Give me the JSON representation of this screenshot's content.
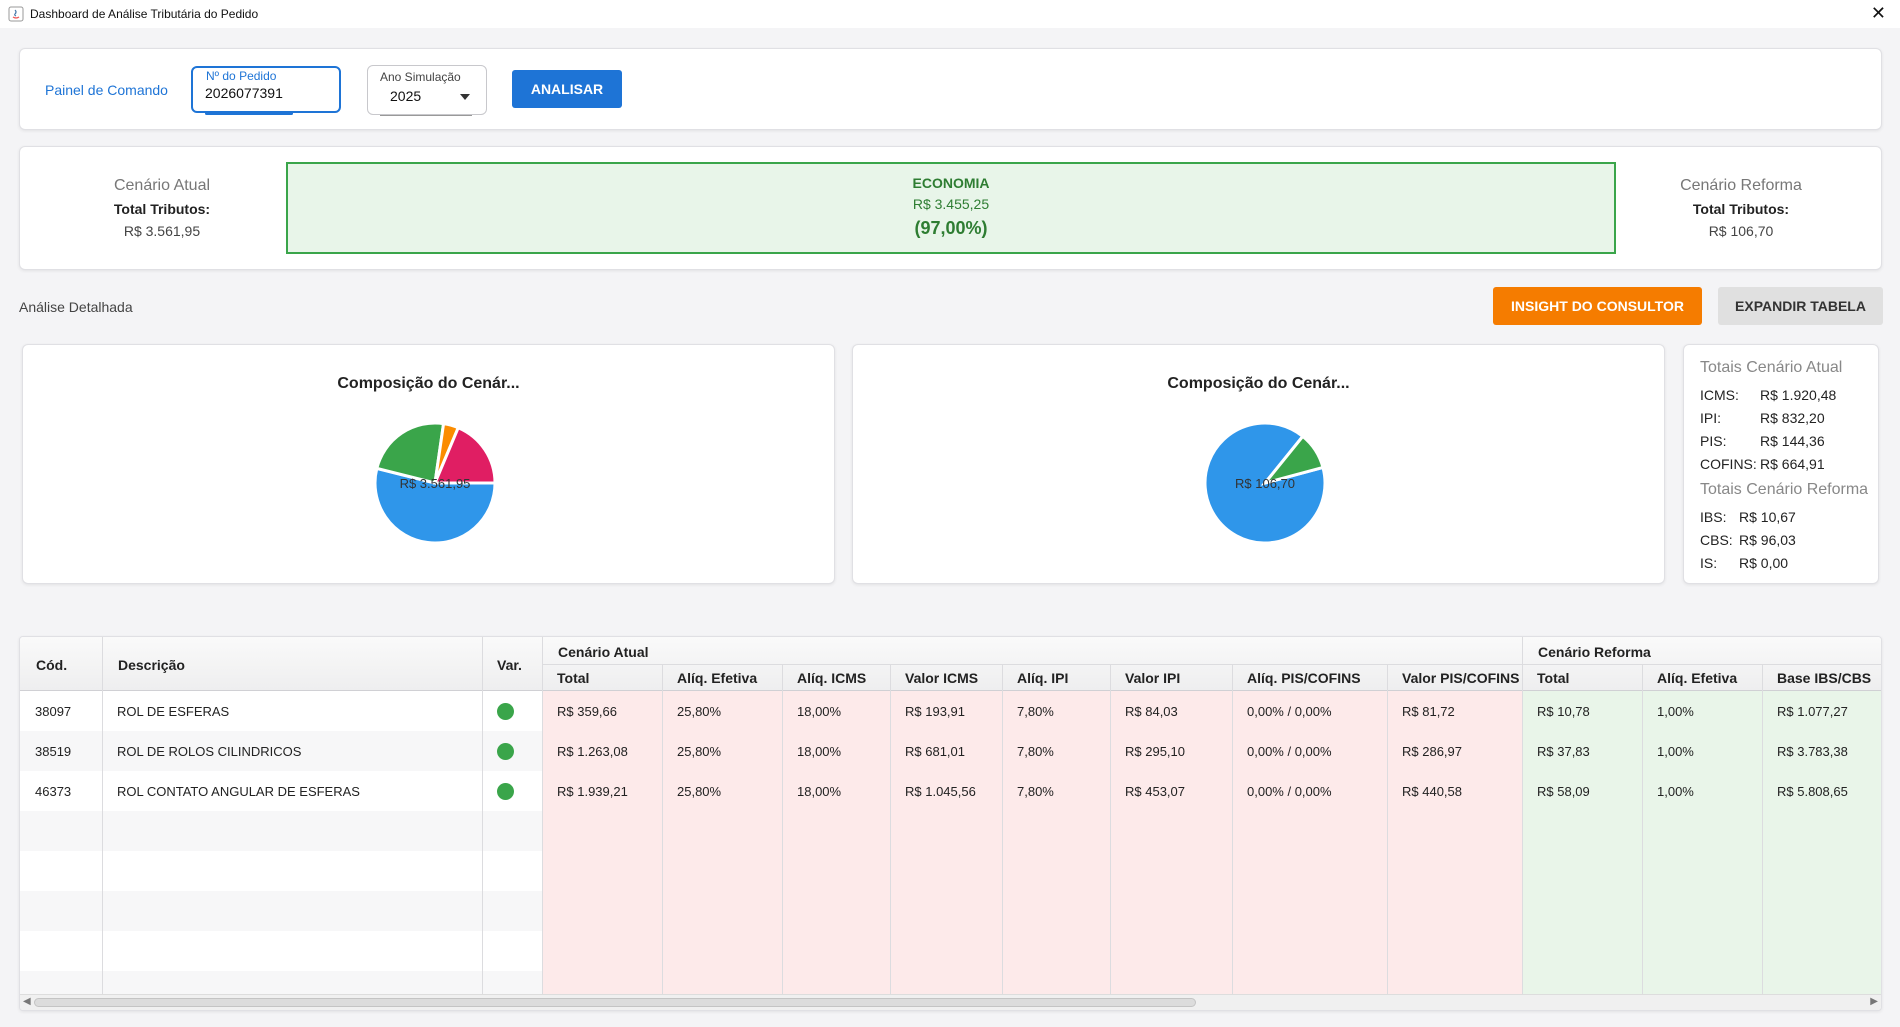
{
  "window": {
    "title": "Dashboard de Análise Tributária do Pedido"
  },
  "command": {
    "label": "Painel de Comando",
    "order_label": "Nº do Pedido",
    "order_value": "2026077391",
    "year_label": "Ano Simulação",
    "year_value": "2025",
    "analyze_label": "ANALISAR"
  },
  "summary": {
    "current": {
      "title": "Cenário Atual",
      "subtitle": "Total Tributos:",
      "value": "R$ 3.561,95"
    },
    "economy": {
      "title": "ECONOMIA",
      "value": "R$ 3.455,25",
      "percent": "(97,00%)"
    },
    "reform": {
      "title": "Cenário Reforma",
      "subtitle": "Total Tributos:",
      "value": "R$ 106,70"
    }
  },
  "detail": {
    "label": "Análise Detalhada",
    "insight_label": "INSIGHT DO CONSULTOR",
    "expand_label": "EXPANDIR TABELA"
  },
  "chart_data": [
    {
      "type": "pie",
      "title": "Composição do Cenár...",
      "center_label": "R$ 3.561,95",
      "categories": [
        "ICMS",
        "IPI",
        "PIS",
        "COFINS"
      ],
      "values": [
        1920.48,
        832.2,
        144.36,
        664.91
      ],
      "colors": [
        "#2f96ea",
        "#3aa54a",
        "#fb8c00",
        "#e01e63"
      ]
    },
    {
      "type": "pie",
      "title": "Composição do Cenár...",
      "center_label": "R$ 106,70",
      "categories": [
        "CBS",
        "IBS",
        "IS"
      ],
      "values": [
        96.03,
        10.67,
        0.0
      ],
      "colors": [
        "#2f96ea",
        "#3aa54a",
        "#fb8c00"
      ]
    }
  ],
  "totals": {
    "current_title": "Totais Cenário Atual",
    "current": [
      {
        "k": "ICMS:",
        "v": "R$ 1.920,48"
      },
      {
        "k": "IPI:",
        "v": "R$ 832,20"
      },
      {
        "k": "PIS:",
        "v": "R$ 144,36"
      },
      {
        "k": "COFINS:",
        "v": "R$ 664,91"
      }
    ],
    "reform_title": "Totais Cenário Reforma",
    "reform": [
      {
        "k": "IBS:",
        "v": "R$ 10,67"
      },
      {
        "k": "CBS:",
        "v": "R$ 96,03"
      },
      {
        "k": "IS:",
        "v": "R$ 0,00"
      }
    ]
  },
  "table": {
    "headers": {
      "cod": "Cód.",
      "desc": "Descrição",
      "var": "Var.",
      "group_atual": "Cenário Atual",
      "group_reforma": "Cenário Reforma",
      "atual": [
        "Total",
        "Alíq. Efetiva",
        "Alíq. ICMS",
        "Valor ICMS",
        "Alíq. IPI",
        "Valor IPI",
        "Alíq. PIS/COFINS",
        "Valor PIS/COFINS"
      ],
      "reforma": [
        "Total",
        "Alíq. Efetiva",
        "Base IBS/CBS"
      ]
    },
    "rows": [
      {
        "cod": "38097",
        "desc": "ROL DE ESFERAS",
        "atual": [
          "R$ 359,66",
          "25,80%",
          "18,00%",
          "R$ 193,91",
          "7,80%",
          "R$ 84,03",
          "0,00% / 0,00%",
          "R$ 81,72"
        ],
        "reforma": [
          "R$ 10,78",
          "1,00%",
          "R$ 1.077,27"
        ]
      },
      {
        "cod": "38519",
        "desc": "ROL DE ROLOS CILINDRICOS",
        "atual": [
          "R$ 1.263,08",
          "25,80%",
          "18,00%",
          "R$ 681,01",
          "7,80%",
          "R$ 295,10",
          "0,00% / 0,00%",
          "R$ 286,97"
        ],
        "reforma": [
          "R$ 37,83",
          "1,00%",
          "R$ 3.783,38"
        ]
      },
      {
        "cod": "46373",
        "desc": "ROL CONTATO ANGULAR DE ESFERAS",
        "atual": [
          "R$ 1.939,21",
          "25,80%",
          "18,00%",
          "R$ 1.045,56",
          "7,80%",
          "R$ 453,07",
          "0,00% / 0,00%",
          "R$ 440,58"
        ],
        "reforma": [
          "R$ 58,09",
          "1,00%",
          "R$ 5.808,65"
        ]
      }
    ]
  }
}
